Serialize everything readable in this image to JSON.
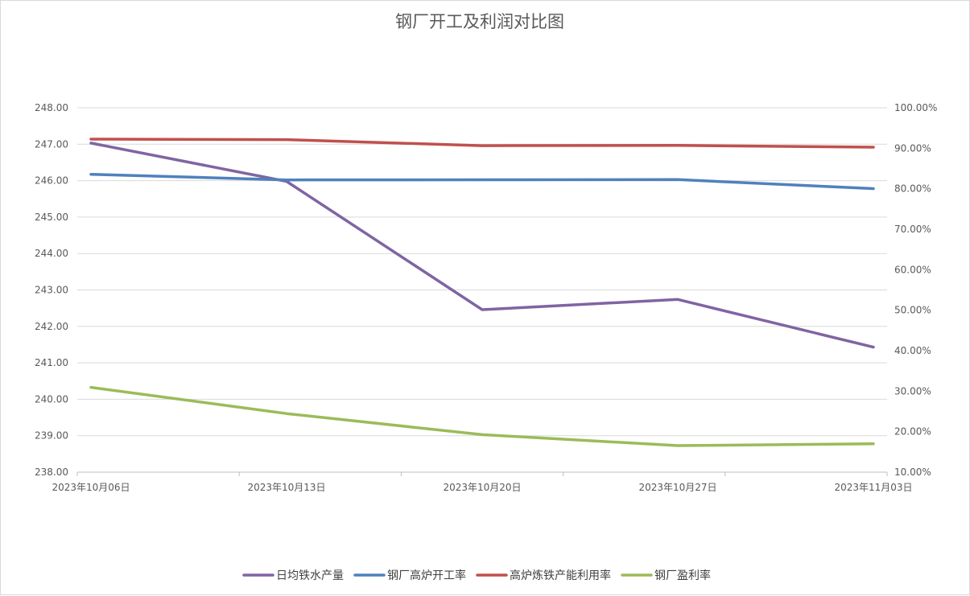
{
  "chart_data": {
    "type": "line",
    "title": "钢厂开工及利润对比图",
    "categories": [
      "2023年10月06日",
      "2023年10月13日",
      "2023年10月20日",
      "2023年10月27日",
      "2023年11月03日"
    ],
    "y_left": {
      "lim": [
        238,
        248
      ],
      "ticks": [
        "238.00",
        "239.00",
        "240.00",
        "241.00",
        "242.00",
        "243.00",
        "244.00",
        "245.00",
        "246.00",
        "247.00",
        "248.00"
      ]
    },
    "y_right": {
      "lim": [
        0.1,
        1.0
      ],
      "ticks": [
        "10.00%",
        "20.00%",
        "30.00%",
        "40.00%",
        "50.00%",
        "60.00%",
        "70.00%",
        "80.00%",
        "90.00%",
        "100.00%"
      ]
    },
    "grid": true,
    "legend_position": "bottom",
    "series": [
      {
        "name": "日均铁水产量",
        "axis": "left",
        "color": "#8064a2",
        "values": [
          247.03,
          245.98,
          242.46,
          242.74,
          241.43
        ]
      },
      {
        "name": "钢厂高炉开工率",
        "axis": "right",
        "color": "#4f81bd",
        "values": [
          0.8357,
          0.8218,
          0.8221,
          0.8226,
          0.8004
        ]
      },
      {
        "name": "高炉炼铁产能利用率",
        "axis": "right",
        "color": "#c0504d",
        "values": [
          0.9226,
          0.9214,
          0.9064,
          0.907,
          0.9026
        ]
      },
      {
        "name": "钢厂盈利率",
        "axis": "right",
        "color": "#9bbb59",
        "values": [
          0.3095,
          0.2446,
          0.1926,
          0.1656,
          0.1699
        ]
      }
    ]
  }
}
